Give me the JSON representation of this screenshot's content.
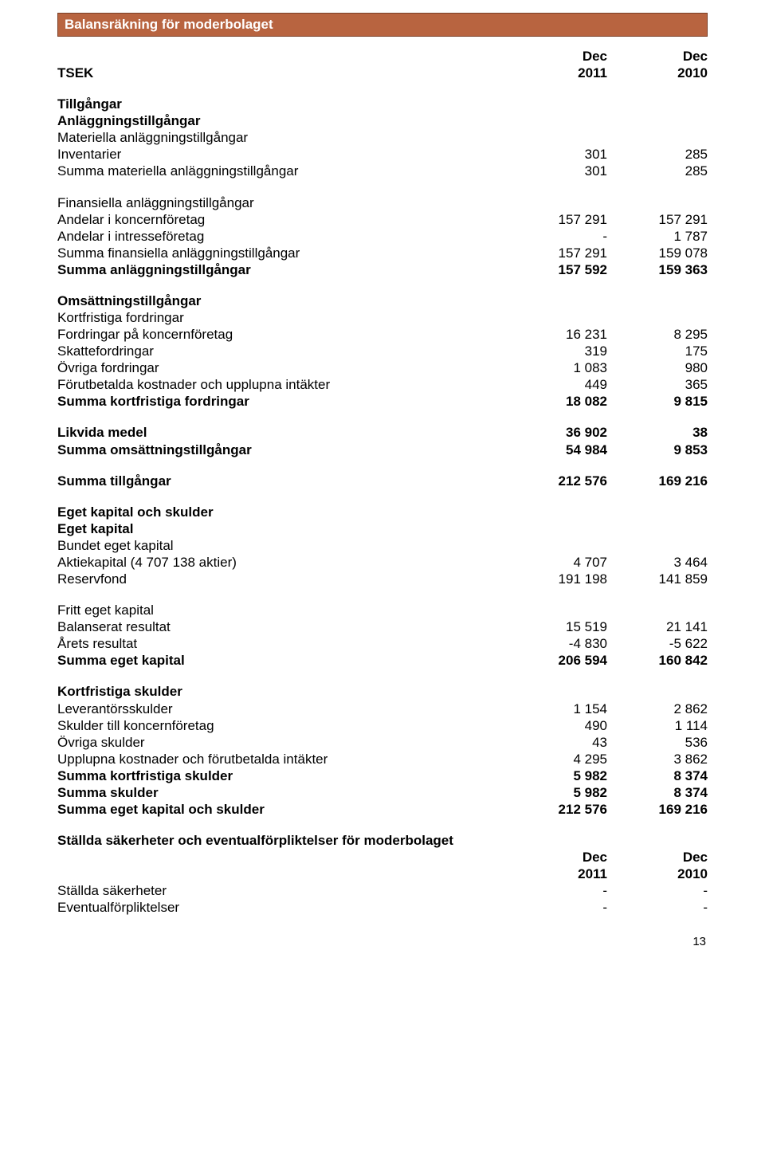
{
  "banner": "Balansräkning för moderbolaget",
  "page_number": "13",
  "col_header1": {
    "top": "Dec",
    "bot": "2011"
  },
  "col_header2": {
    "top": "Dec",
    "bot": "2010"
  },
  "tsek": "TSEK",
  "s1": {
    "h1": "Tillgångar",
    "h2": "Anläggningstillgångar"
  },
  "mat": {
    "h": "Materiella anläggningstillgångar",
    "r1": {
      "l": "Inventarier",
      "a": "301",
      "b": "285"
    },
    "sum": {
      "l": "Summa materiella anläggningstillgångar",
      "a": "301",
      "b": "285"
    }
  },
  "fin": {
    "h": "Finansiella anläggningstillgångar",
    "r1": {
      "l": "Andelar i koncernföretag",
      "a": "157 291",
      "b": "157 291"
    },
    "r2": {
      "l": "Andelar i intresseföretag",
      "a": "-",
      "b": "1 787"
    },
    "sum": {
      "l": "Summa finansiella anläggningstillgångar",
      "a": "157 291",
      "b": "159 078"
    },
    "tot": {
      "l": "Summa anläggningstillgångar",
      "a": "157 592",
      "b": "159 363"
    }
  },
  "oms": {
    "h": "Omsättningstillgångar",
    "h2": "Kortfristiga fordringar",
    "r1": {
      "l": "Fordringar på koncernföretag",
      "a": "16 231",
      "b": "8 295"
    },
    "r2": {
      "l": "Skattefordringar",
      "a": "319",
      "b": "175"
    },
    "r3": {
      "l": "Övriga fordringar",
      "a": "1 083",
      "b": "980"
    },
    "r4": {
      "l": "Förutbetalda kostnader och upplupna intäkter",
      "a": "449",
      "b": "365"
    },
    "sum": {
      "l": "Summa kortfristiga fordringar",
      "a": "18 082",
      "b": "9 815"
    }
  },
  "likv": {
    "l": "Likvida medel",
    "a": "36 902",
    "b": "38"
  },
  "somo": {
    "l": "Summa omsättningstillgångar",
    "a": "54 984",
    "b": "9 853"
  },
  "stil": {
    "l": "Summa tillgångar",
    "a": "212 576",
    "b": "169 216"
  },
  "ek": {
    "h1": "Eget kapital och skulder",
    "h2": "Eget kapital",
    "h3": "Bundet eget kapital",
    "r1": {
      "l": "Aktiekapital (4 707 138 aktier)",
      "a": "4 707",
      "b": "3 464"
    },
    "r2": {
      "l": "Reservfond",
      "a": "191 198",
      "b": "141 859"
    }
  },
  "fek": {
    "h": "Fritt eget kapital",
    "r1": {
      "l": "Balanserat resultat",
      "a": "15 519",
      "b": "21 141"
    },
    "r2": {
      "l": "Årets resultat",
      "a": "-4 830",
      "b": "-5 622"
    },
    "sum": {
      "l": "Summa eget kapital",
      "a": "206 594",
      "b": "160 842"
    }
  },
  "ks": {
    "h": "Kortfristiga skulder",
    "r1": {
      "l": "Leverantörsskulder",
      "a": "1 154",
      "b": "2 862"
    },
    "r2": {
      "l": "Skulder till koncernföretag",
      "a": "490",
      "b": "1 114"
    },
    "r3": {
      "l": "Övriga skulder",
      "a": "43",
      "b": "536"
    },
    "r4": {
      "l": "Upplupna kostnader och förutbetalda intäkter",
      "a": "4 295",
      "b": "3 862"
    },
    "sum1": {
      "l": "Summa kortfristiga skulder",
      "a": "5 982",
      "b": "8 374"
    },
    "sum2": {
      "l": "Summa skulder",
      "a": "5 982",
      "b": "8 374"
    },
    "sum3": {
      "l": "Summa eget kapital och skulder",
      "a": "212 576",
      "b": "169 216"
    }
  },
  "sec2": {
    "h": "Ställda säkerheter och eventualförpliktelser för moderbolaget",
    "ch1": {
      "top": "Dec",
      "bot": "2011"
    },
    "ch2": {
      "top": "Dec",
      "bot": "2010"
    },
    "r1": {
      "l": "Ställda säkerheter",
      "a": "-",
      "b": "-"
    },
    "r2": {
      "l": "Eventualförpliktelser",
      "a": "-",
      "b": "-"
    }
  }
}
